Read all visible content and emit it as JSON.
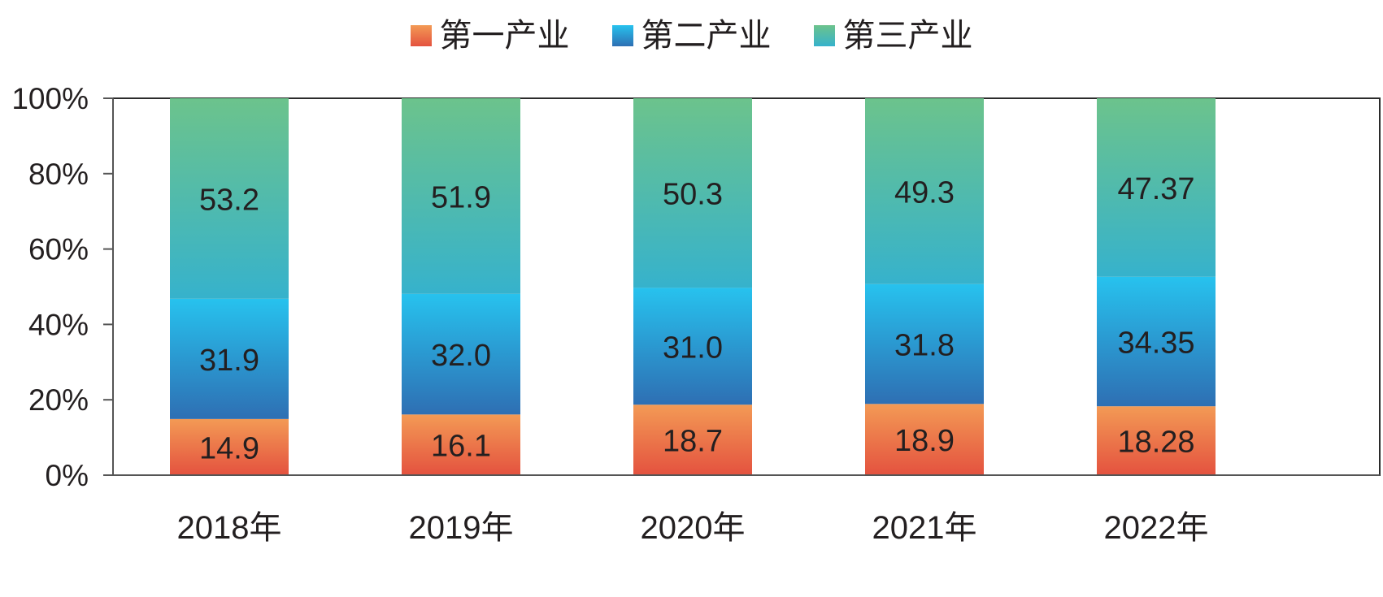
{
  "chart_data": {
    "type": "bar",
    "stacked": true,
    "categories": [
      "2018年",
      "2019年",
      "2020年",
      "2021年",
      "2022年"
    ],
    "series": [
      {
        "name": "第一产业",
        "values": [
          14.9,
          16.1,
          18.7,
          18.9,
          18.28
        ],
        "labels": [
          "14.9",
          "16.1",
          "18.7",
          "18.9",
          "18.28"
        ]
      },
      {
        "name": "第二产业",
        "values": [
          31.9,
          32.0,
          31.0,
          31.8,
          34.35
        ],
        "labels": [
          "31.9",
          "32.0",
          "31.0",
          "31.8",
          "34.35"
        ]
      },
      {
        "name": "第三产业",
        "values": [
          53.2,
          51.9,
          50.3,
          49.3,
          47.37
        ],
        "labels": [
          "53.2",
          "51.9",
          "50.3",
          "49.3",
          "47.37"
        ]
      }
    ],
    "y_ticks": [
      "0%",
      "20%",
      "40%",
      "60%",
      "80%",
      "100%"
    ],
    "ylim": [
      0,
      100
    ],
    "legend_position": "top-center",
    "grid": false,
    "colors": {
      "series_1": {
        "top": "#f39a55",
        "bottom": "#e4523f"
      },
      "series_2": {
        "top": "#27c2ee",
        "bottom": "#2e6fb3"
      },
      "series_3": {
        "top": "#6cc38c",
        "bottom": "#36b2cc"
      },
      "axis": "#555555",
      "text": "#231f20"
    }
  }
}
